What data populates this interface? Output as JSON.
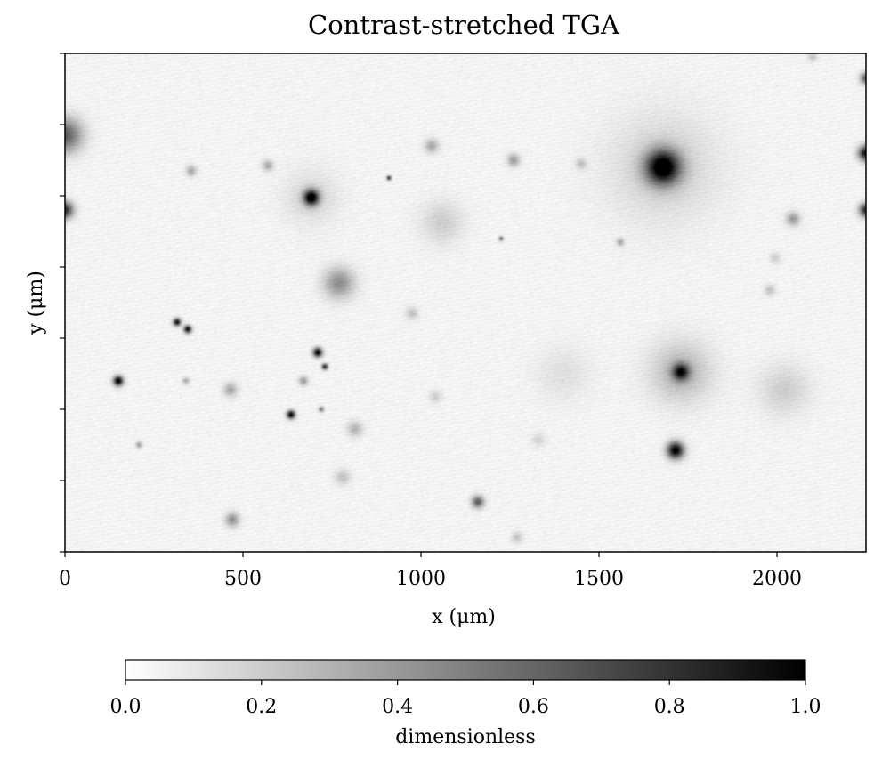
{
  "chart_data": {
    "type": "heatmap",
    "title": "Contrast-stretched TGA",
    "xlabel": "x (μm)",
    "ylabel": "y (μm)",
    "xlim": [
      0,
      2250
    ],
    "ylim": [
      0,
      1400
    ],
    "x_ticks": [
      0,
      500,
      1000,
      1500,
      2000
    ],
    "x_tick_labels": [
      "0",
      "500",
      "1000",
      "1500",
      "2000"
    ],
    "y_tick_count": 8,
    "y_tick_labels_shown": false,
    "grid": false,
    "colormap": "gray_r",
    "colormap_colors": {
      "low": "#ffffff",
      "high": "#000000"
    },
    "colorbar": {
      "orientation": "horizontal",
      "label": "dimensionless",
      "range": [
        0.0,
        1.0
      ],
      "ticks": [
        0.0,
        0.2,
        0.4,
        0.6,
        0.8,
        1.0
      ],
      "tick_labels": [
        "0.0",
        "0.2",
        "0.4",
        "0.6",
        "0.8",
        "1.0"
      ]
    },
    "features": [
      {
        "x": 1680,
        "y": 1080,
        "value": 1.0,
        "spread": 45,
        "name": "large dark blob upper right"
      },
      {
        "x": 1680,
        "y": 1080,
        "value": 0.15,
        "spread": 140,
        "name": "halo around large blob"
      },
      {
        "x": 692,
        "y": 995,
        "value": 1.0,
        "spread": 20,
        "name": "dark blob upper middle"
      },
      {
        "x": 692,
        "y": 995,
        "value": 0.12,
        "spread": 70
      },
      {
        "x": 150,
        "y": 480,
        "value": 1.0,
        "spread": 13
      },
      {
        "x": 315,
        "y": 645,
        "value": 0.95,
        "spread": 10
      },
      {
        "x": 345,
        "y": 625,
        "value": 0.95,
        "spread": 10
      },
      {
        "x": 710,
        "y": 560,
        "value": 1.0,
        "spread": 12
      },
      {
        "x": 730,
        "y": 520,
        "value": 0.85,
        "spread": 8
      },
      {
        "x": 635,
        "y": 385,
        "value": 1.0,
        "spread": 11
      },
      {
        "x": 1715,
        "y": 285,
        "value": 1.0,
        "spread": 22,
        "name": "dark blob lower right"
      },
      {
        "x": 1730,
        "y": 505,
        "value": 0.75,
        "spread": 22,
        "name": "fuzzy dark spot right"
      },
      {
        "x": 1730,
        "y": 505,
        "value": 0.25,
        "spread": 80
      },
      {
        "x": 0,
        "y": 1170,
        "value": 0.6,
        "spread": 45,
        "name": "left edge dark"
      },
      {
        "x": 0,
        "y": 960,
        "value": 0.8,
        "spread": 22
      },
      {
        "x": 2250,
        "y": 1120,
        "value": 0.9,
        "spread": 20,
        "name": "right edge dark"
      },
      {
        "x": 2250,
        "y": 960,
        "value": 0.8,
        "spread": 18
      },
      {
        "x": 2250,
        "y": 1330,
        "value": 0.6,
        "spread": 15
      },
      {
        "x": 770,
        "y": 755,
        "value": 0.4,
        "spread": 40
      },
      {
        "x": 1160,
        "y": 140,
        "value": 0.6,
        "spread": 16
      },
      {
        "x": 470,
        "y": 90,
        "value": 0.4,
        "spread": 18
      },
      {
        "x": 465,
        "y": 455,
        "value": 0.3,
        "spread": 18
      },
      {
        "x": 2020,
        "y": 455,
        "value": 0.15,
        "spread": 65
      },
      {
        "x": 1060,
        "y": 925,
        "value": 0.15,
        "spread": 55
      },
      {
        "x": 1400,
        "y": 500,
        "value": 0.08,
        "spread": 70
      },
      {
        "x": 2045,
        "y": 935,
        "value": 0.35,
        "spread": 18
      },
      {
        "x": 355,
        "y": 1070,
        "value": 0.3,
        "spread": 14
      },
      {
        "x": 570,
        "y": 1085,
        "value": 0.3,
        "spread": 14
      },
      {
        "x": 1260,
        "y": 1100,
        "value": 0.35,
        "spread": 16
      },
      {
        "x": 1450,
        "y": 1090,
        "value": 0.2,
        "spread": 14
      },
      {
        "x": 910,
        "y": 1050,
        "value": 0.8,
        "spread": 6
      },
      {
        "x": 1225,
        "y": 880,
        "value": 0.6,
        "spread": 6
      },
      {
        "x": 815,
        "y": 345,
        "value": 0.25,
        "spread": 20
      },
      {
        "x": 780,
        "y": 210,
        "value": 0.2,
        "spread": 20
      },
      {
        "x": 1270,
        "y": 40,
        "value": 0.2,
        "spread": 14
      },
      {
        "x": 975,
        "y": 670,
        "value": 0.2,
        "spread": 16
      },
      {
        "x": 1040,
        "y": 435,
        "value": 0.15,
        "spread": 16
      },
      {
        "x": 1330,
        "y": 315,
        "value": 0.12,
        "spread": 18
      },
      {
        "x": 1980,
        "y": 735,
        "value": 0.2,
        "spread": 14
      },
      {
        "x": 1995,
        "y": 825,
        "value": 0.15,
        "spread": 14
      },
      {
        "x": 1030,
        "y": 1140,
        "value": 0.3,
        "spread": 18
      },
      {
        "x": 2100,
        "y": 1390,
        "value": 0.2,
        "spread": 12
      },
      {
        "x": 720,
        "y": 400,
        "value": 0.5,
        "spread": 7
      },
      {
        "x": 208,
        "y": 300,
        "value": 0.35,
        "spread": 8
      },
      {
        "x": 1560,
        "y": 870,
        "value": 0.3,
        "spread": 10
      },
      {
        "x": 340,
        "y": 480,
        "value": 0.3,
        "spread": 9
      },
      {
        "x": 670,
        "y": 480,
        "value": 0.35,
        "spread": 12
      }
    ]
  }
}
